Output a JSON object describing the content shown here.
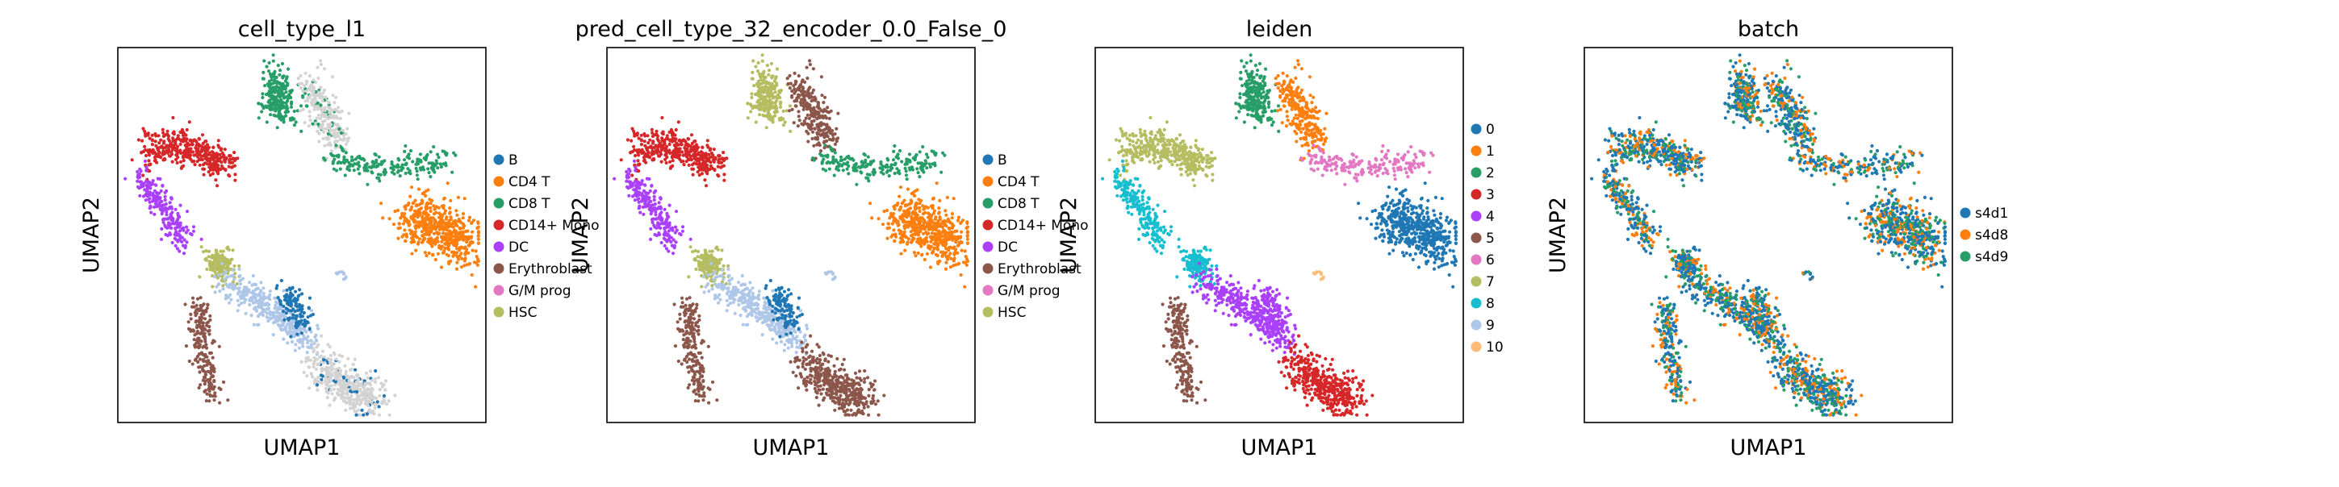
{
  "colors": {
    "c0": "#1f77b4",
    "c1": "#ff7f0e",
    "c2": "#279e68",
    "c3": "#d62728",
    "c4": "#aa40fc",
    "c5": "#8c564b",
    "c6": "#e377c2",
    "c7": "#b5bd61",
    "c8": "#17becf",
    "c9": "#aec7e8",
    "c10": "#ffbb78",
    "na": "#d3d3d3"
  },
  "chart_data": [
    {
      "type": "scatter",
      "title": "cell_type_l1",
      "xlabel": "UMAP1",
      "ylabel": "UMAP2",
      "legend_position": "right",
      "legend": [
        {
          "label": "B",
          "color": "#1f77b4"
        },
        {
          "label": "CD4 T",
          "color": "#ff7f0e"
        },
        {
          "label": "CD8 T",
          "color": "#279e68"
        },
        {
          "label": "CD14+ Mono",
          "color": "#d62728"
        },
        {
          "label": "DC",
          "color": "#aa40fc"
        },
        {
          "label": "Erythroblast",
          "color": "#8c564b"
        },
        {
          "label": "G/M prog",
          "color": "#e377c2"
        },
        {
          "label": "HSC",
          "color": "#b5bd61"
        }
      ]
    },
    {
      "type": "scatter",
      "title": "pred_cell_type_32_encoder_0.0_False_0",
      "xlabel": "UMAP1",
      "ylabel": "UMAP2",
      "legend_position": "right",
      "legend": [
        {
          "label": "B",
          "color": "#1f77b4"
        },
        {
          "label": "CD4 T",
          "color": "#ff7f0e"
        },
        {
          "label": "CD8 T",
          "color": "#279e68"
        },
        {
          "label": "CD14+ Mono",
          "color": "#d62728"
        },
        {
          "label": "DC",
          "color": "#aa40fc"
        },
        {
          "label": "Erythroblast",
          "color": "#8c564b"
        },
        {
          "label": "G/M prog",
          "color": "#e377c2"
        },
        {
          "label": "HSC",
          "color": "#b5bd61"
        }
      ]
    },
    {
      "type": "scatter",
      "title": "leiden",
      "xlabel": "UMAP1",
      "ylabel": "UMAP2",
      "legend_position": "right",
      "legend": [
        {
          "label": "0",
          "color": "#1f77b4"
        },
        {
          "label": "1",
          "color": "#ff7f0e"
        },
        {
          "label": "2",
          "color": "#279e68"
        },
        {
          "label": "3",
          "color": "#d62728"
        },
        {
          "label": "4",
          "color": "#aa40fc"
        },
        {
          "label": "5",
          "color": "#8c564b"
        },
        {
          "label": "6",
          "color": "#e377c2"
        },
        {
          "label": "7",
          "color": "#b5bd61"
        },
        {
          "label": "8",
          "color": "#17becf"
        },
        {
          "label": "9",
          "color": "#aec7e8"
        },
        {
          "label": "10",
          "color": "#ffbb78"
        }
      ]
    },
    {
      "type": "scatter",
      "title": "batch",
      "xlabel": "UMAP1",
      "ylabel": "UMAP2",
      "legend_position": "right",
      "legend": [
        {
          "label": "s4d1",
          "color": "#1f77b4"
        },
        {
          "label": "s4d8",
          "color": "#ff7f0e"
        },
        {
          "label": "s4d9",
          "color": "#279e68"
        }
      ]
    }
  ]
}
